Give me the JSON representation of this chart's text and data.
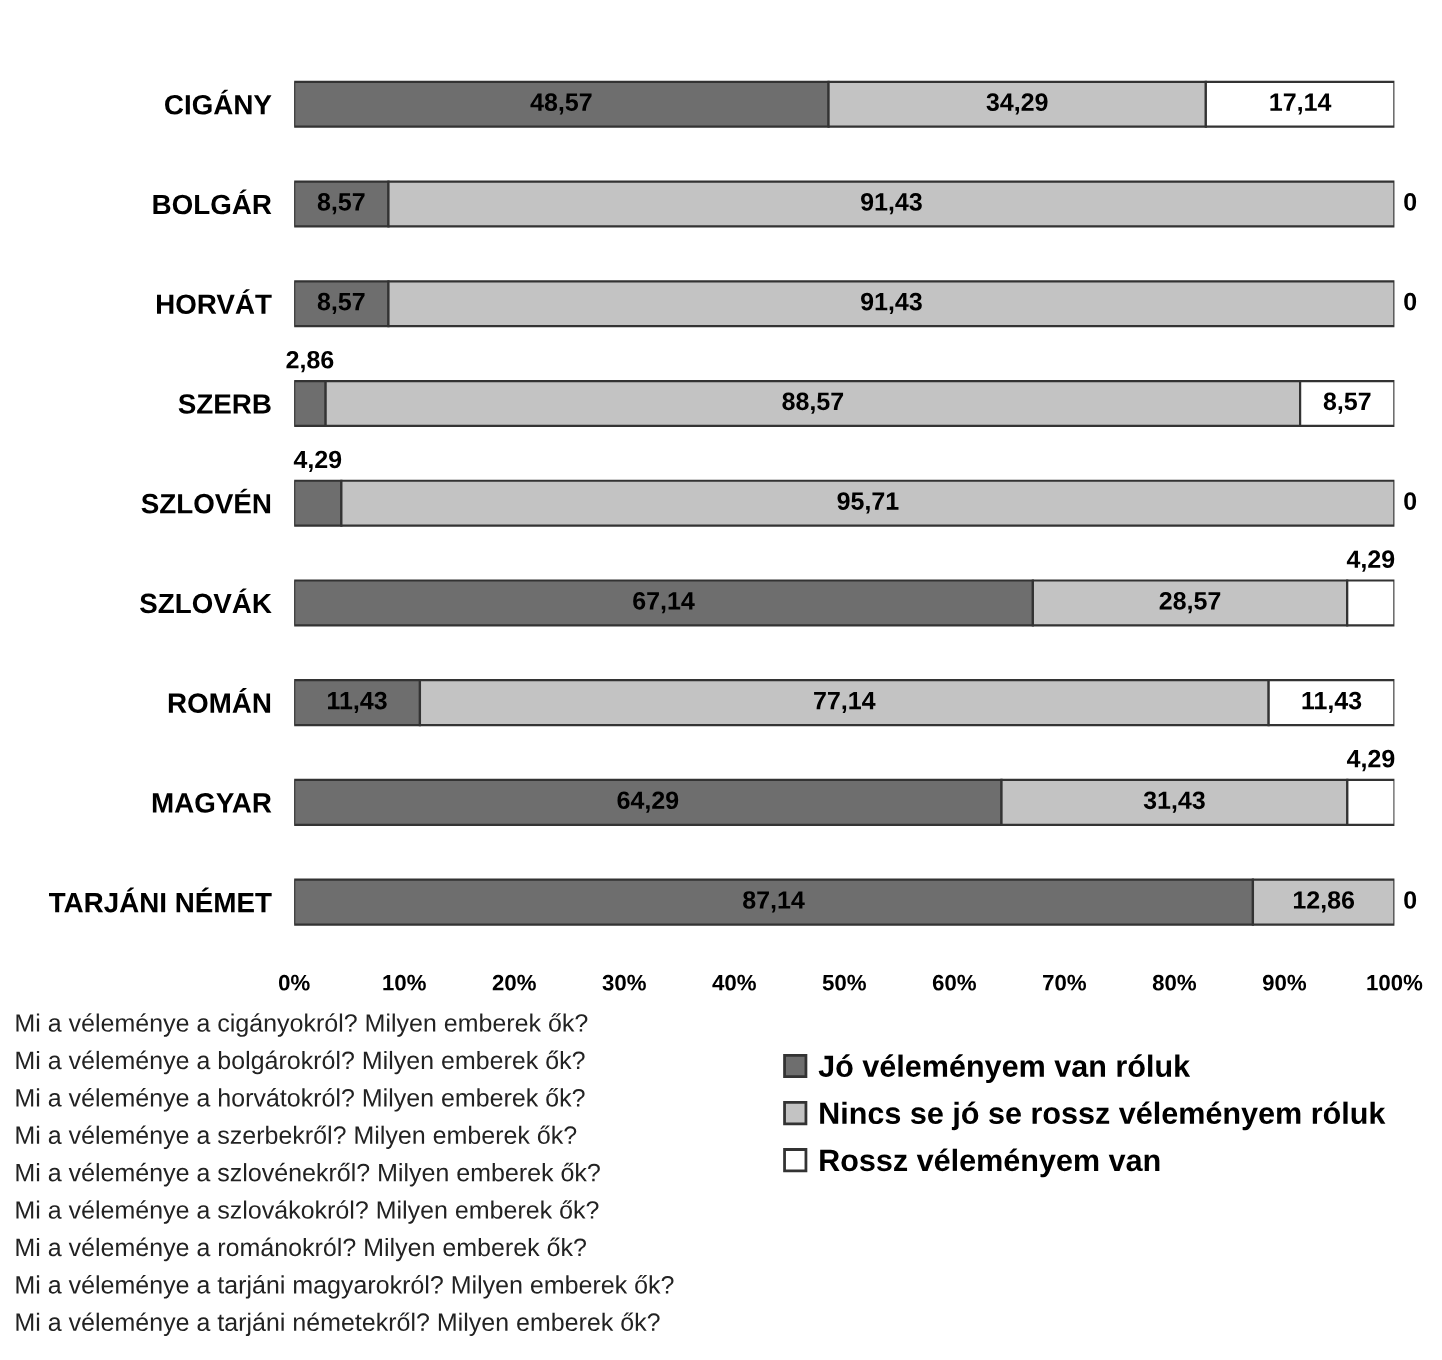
{
  "chart_data": {
    "type": "bar",
    "orientation": "horizontal",
    "stacked": true,
    "categories": [
      "CIGÁNY",
      "BOLGÁR",
      "HORVÁT",
      "SZERB",
      "SZLOVÉN",
      "SZLOVÁK",
      "ROMÁN",
      "MAGYAR",
      "TARJÁNI NÉMET"
    ],
    "series": [
      {
        "name": "Jó véleményem van róluk",
        "color": "#6e6e6e",
        "values": [
          48.57,
          8.57,
          8.57,
          2.86,
          4.29,
          67.14,
          11.43,
          64.29,
          87.14
        ],
        "value_labels": [
          "48,57",
          "8,57",
          "8,57",
          "2,86",
          "4,29",
          "67,14",
          "11,43",
          "64,29",
          "87,14"
        ]
      },
      {
        "name": "Nincs se jó se rossz véleményem róluk",
        "color": "#c3c3c3",
        "values": [
          34.29,
          91.43,
          91.43,
          88.57,
          95.71,
          28.57,
          77.14,
          31.43,
          12.86
        ],
        "value_labels": [
          "34,29",
          "91,43",
          "91,43",
          "88,57",
          "95,71",
          "28,57",
          "77,14",
          "31,43",
          "12,86"
        ]
      },
      {
        "name": "Rossz véleményem van",
        "color": "#ffffff",
        "values": [
          17.14,
          0,
          0,
          8.57,
          0,
          4.29,
          11.43,
          4.29,
          0
        ],
        "value_labels": [
          "17,14",
          "0",
          "0",
          "8,57",
          "0",
          "4,29",
          "11,43",
          "4,29",
          "0"
        ]
      }
    ],
    "xlim": [
      0,
      100
    ],
    "xticks": [
      {
        "value": 0,
        "label": "0%"
      },
      {
        "value": 10,
        "label": "10%"
      },
      {
        "value": 20,
        "label": "20%"
      },
      {
        "value": 30,
        "label": "30%"
      },
      {
        "value": 40,
        "label": "40%"
      },
      {
        "value": 50,
        "label": "50%"
      },
      {
        "value": 60,
        "label": "60%"
      },
      {
        "value": 70,
        "label": "70%"
      },
      {
        "value": 80,
        "label": "80%"
      },
      {
        "value": 90,
        "label": "90%"
      },
      {
        "value": 100,
        "label": "100%"
      }
    ],
    "grid": false,
    "legend": "bottom right",
    "annotations": [
      "Mi a véleménye a cigányokról? Milyen emberek ők?",
      "Mi a véleménye a bolgárokról? Milyen emberek ők?",
      "Mi a véleménye a horvátokról? Milyen emberek ők?",
      "Mi a véleménye a szerbekről? Milyen emberek ők?",
      "Mi a véleménye a szlovénekről? Milyen emberek ők?",
      "Mi a véleménye a szlovákokról? Milyen emberek ők?",
      "Mi a véleménye a románokról? Milyen emberek ők?",
      "Mi a véleménye a tarjáni magyarokról? Milyen emberek ők?",
      "Mi a véleménye a tarjáni németekről? Milyen emberek ők?"
    ]
  }
}
